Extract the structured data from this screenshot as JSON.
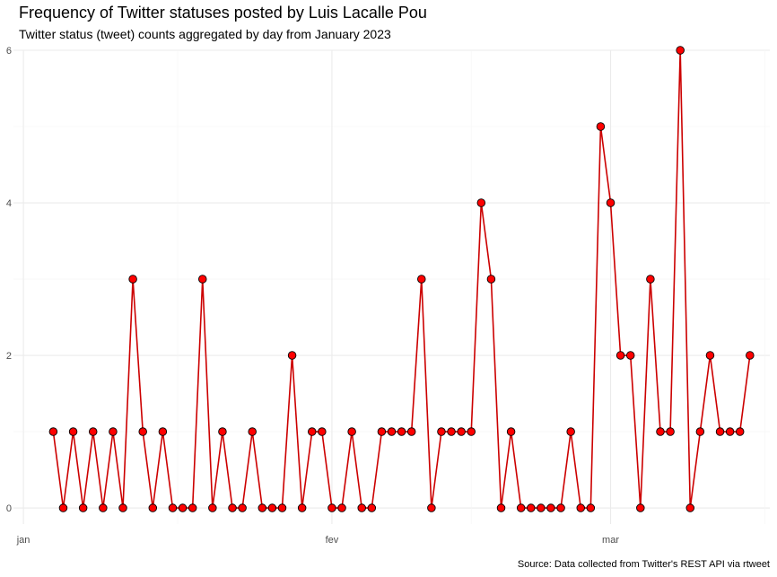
{
  "title": "Frequency of Twitter statuses posted by Luis Lacalle Pou",
  "subtitle": "Twitter status (tweet) counts aggregated by day from January 2023",
  "caption": "Source: Data collected from Twitter's REST API via rtweet",
  "colors": {
    "line": "#cc0000",
    "point_fill": "#ff0000",
    "point_stroke": "#000000",
    "grid_major": "#ebebeb",
    "grid_minor": "#f5f5f5"
  },
  "chart_data": {
    "type": "line",
    "x_axis": {
      "type": "date",
      "range": [
        "2022-12-31",
        "2023-03-17"
      ],
      "tick_labels": [
        "jan",
        "fev",
        "mar"
      ],
      "tick_dates": [
        "2023-01-01",
        "2023-02-01",
        "2023-03-01"
      ]
    },
    "y_axis": {
      "range": [
        0,
        6
      ],
      "ticks": [
        0,
        2,
        4,
        6
      ]
    },
    "grid": true,
    "legend": "none",
    "points": [
      {
        "x": "2023-01-04",
        "y": 1
      },
      {
        "x": "2023-01-05",
        "y": 0
      },
      {
        "x": "2023-01-06",
        "y": 1
      },
      {
        "x": "2023-01-07",
        "y": 0
      },
      {
        "x": "2023-01-08",
        "y": 1
      },
      {
        "x": "2023-01-09",
        "y": 0
      },
      {
        "x": "2023-01-10",
        "y": 1
      },
      {
        "x": "2023-01-11",
        "y": 0
      },
      {
        "x": "2023-01-12",
        "y": 3
      },
      {
        "x": "2023-01-13",
        "y": 1
      },
      {
        "x": "2023-01-14",
        "y": 0
      },
      {
        "x": "2023-01-15",
        "y": 1
      },
      {
        "x": "2023-01-16",
        "y": 0
      },
      {
        "x": "2023-01-17",
        "y": 0
      },
      {
        "x": "2023-01-18",
        "y": 0
      },
      {
        "x": "2023-01-19",
        "y": 3
      },
      {
        "x": "2023-01-20",
        "y": 0
      },
      {
        "x": "2023-01-21",
        "y": 1
      },
      {
        "x": "2023-01-22",
        "y": 0
      },
      {
        "x": "2023-01-23",
        "y": 0
      },
      {
        "x": "2023-01-24",
        "y": 1
      },
      {
        "x": "2023-01-25",
        "y": 0
      },
      {
        "x": "2023-01-26",
        "y": 0
      },
      {
        "x": "2023-01-27",
        "y": 0
      },
      {
        "x": "2023-01-28",
        "y": 2
      },
      {
        "x": "2023-01-29",
        "y": 0
      },
      {
        "x": "2023-01-30",
        "y": 1
      },
      {
        "x": "2023-01-31",
        "y": 1
      },
      {
        "x": "2023-02-01",
        "y": 0
      },
      {
        "x": "2023-02-02",
        "y": 0
      },
      {
        "x": "2023-02-03",
        "y": 1
      },
      {
        "x": "2023-02-04",
        "y": 0
      },
      {
        "x": "2023-02-05",
        "y": 0
      },
      {
        "x": "2023-02-06",
        "y": 1
      },
      {
        "x": "2023-02-07",
        "y": 1
      },
      {
        "x": "2023-02-08",
        "y": 1
      },
      {
        "x": "2023-02-09",
        "y": 1
      },
      {
        "x": "2023-02-10",
        "y": 3
      },
      {
        "x": "2023-02-11",
        "y": 0
      },
      {
        "x": "2023-02-12",
        "y": 1
      },
      {
        "x": "2023-02-13",
        "y": 1
      },
      {
        "x": "2023-02-14",
        "y": 1
      },
      {
        "x": "2023-02-15",
        "y": 1
      },
      {
        "x": "2023-02-16",
        "y": 4
      },
      {
        "x": "2023-02-17",
        "y": 3
      },
      {
        "x": "2023-02-18",
        "y": 0
      },
      {
        "x": "2023-02-19",
        "y": 1
      },
      {
        "x": "2023-02-20",
        "y": 0
      },
      {
        "x": "2023-02-21",
        "y": 0
      },
      {
        "x": "2023-02-22",
        "y": 0
      },
      {
        "x": "2023-02-23",
        "y": 0
      },
      {
        "x": "2023-02-24",
        "y": 0
      },
      {
        "x": "2023-02-25",
        "y": 1
      },
      {
        "x": "2023-02-26",
        "y": 0
      },
      {
        "x": "2023-02-27",
        "y": 0
      },
      {
        "x": "2023-02-28",
        "y": 5
      },
      {
        "x": "2023-03-01",
        "y": 4
      },
      {
        "x": "2023-03-02",
        "y": 2
      },
      {
        "x": "2023-03-03",
        "y": 2
      },
      {
        "x": "2023-03-04",
        "y": 0
      },
      {
        "x": "2023-03-05",
        "y": 3
      },
      {
        "x": "2023-03-06",
        "y": 1
      },
      {
        "x": "2023-03-07",
        "y": 1
      },
      {
        "x": "2023-03-08",
        "y": 6
      },
      {
        "x": "2023-03-09",
        "y": 0
      },
      {
        "x": "2023-03-10",
        "y": 1
      },
      {
        "x": "2023-03-11",
        "y": 2
      },
      {
        "x": "2023-03-12",
        "y": 1
      },
      {
        "x": "2023-03-13",
        "y": 1
      },
      {
        "x": "2023-03-14",
        "y": 1
      },
      {
        "x": "2023-03-15",
        "y": 2
      }
    ]
  }
}
